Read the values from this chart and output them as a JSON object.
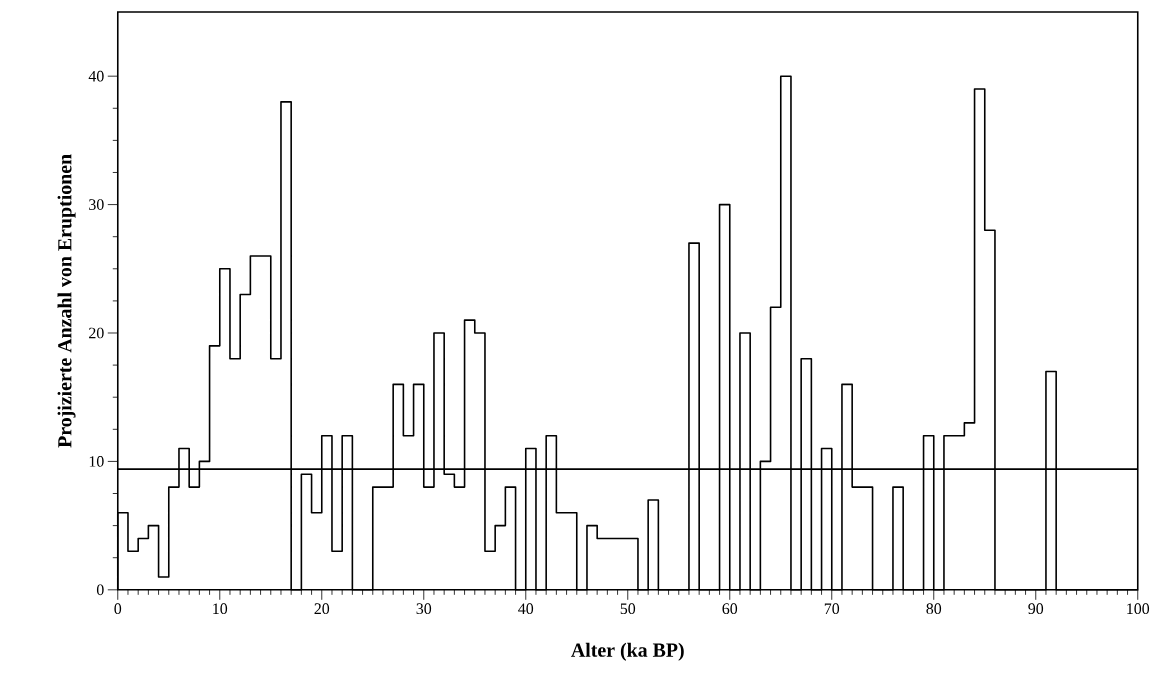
{
  "chart_data": {
    "type": "histogram",
    "xlabel": "Alter (ka BP)",
    "ylabel": "Projizierte Anzahl von Eruptionen",
    "bins": [
      0,
      1,
      2,
      3,
      4,
      5,
      6,
      7,
      8,
      9,
      10,
      11,
      12,
      13,
      14,
      15,
      16,
      17,
      18,
      19,
      20,
      21,
      22,
      23,
      24,
      25,
      26,
      27,
      28,
      29,
      30,
      31,
      32,
      33,
      34,
      35,
      36,
      37,
      38,
      39,
      40,
      41,
      42,
      43,
      44,
      45,
      46,
      47,
      48,
      49,
      50,
      51,
      52,
      53,
      54,
      55,
      56,
      57,
      58,
      59,
      60,
      61,
      62,
      63,
      64,
      65,
      66,
      67,
      68,
      69,
      70,
      71,
      72,
      73,
      74,
      75,
      76,
      77,
      78,
      79,
      80,
      81,
      82,
      83,
      84,
      85,
      86,
      87,
      88,
      89,
      90,
      91,
      92,
      93,
      94,
      95,
      96,
      97,
      98,
      99,
      100
    ],
    "values": [
      6,
      3,
      4,
      5,
      1,
      8,
      11,
      8,
      10,
      19,
      25,
      18,
      23,
      26,
      26,
      18,
      38,
      0,
      9,
      6,
      12,
      3,
      12,
      0,
      0,
      8,
      8,
      16,
      12,
      16,
      8,
      20,
      9,
      8,
      21,
      20,
      3,
      5,
      8,
      0,
      11,
      0,
      12,
      6,
      6,
      0,
      5,
      4,
      4,
      4,
      4,
      0,
      7,
      0,
      0,
      0,
      27,
      0,
      0,
      30,
      0,
      20,
      0,
      10,
      22,
      40,
      0,
      18,
      0,
      11,
      0,
      16,
      8,
      8,
      0,
      0,
      8,
      0,
      0,
      12,
      0,
      12,
      12,
      13,
      39,
      28,
      0,
      0,
      0,
      0,
      0,
      17,
      0,
      0,
      0,
      0,
      0,
      0,
      0,
      0
    ],
    "color": "#000000",
    "xlim": [
      0,
      100
    ],
    "xticks": [
      0,
      10,
      20,
      30,
      40,
      50,
      60,
      70,
      80,
      90,
      100
    ],
    "ylim": [
      0,
      45
    ],
    "yticks": [
      0,
      10,
      20,
      30,
      40
    ],
    "grid": false,
    "ref_lines": [
      {
        "axis": "y",
        "value": 9.4,
        "color": "#000000"
      }
    ]
  }
}
